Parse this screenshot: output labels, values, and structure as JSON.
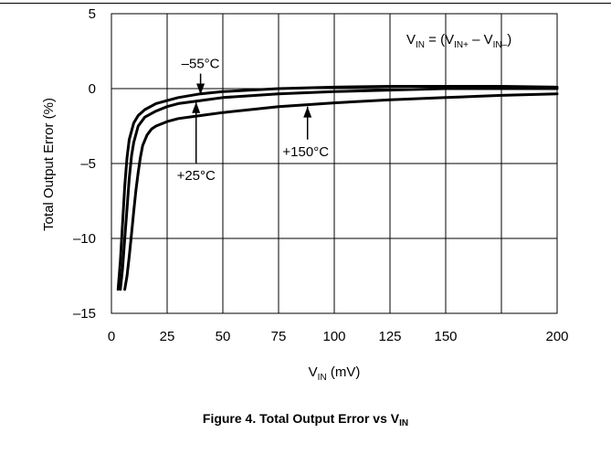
{
  "chart_data": {
    "type": "line",
    "title": "",
    "xlabel": "V",
    "xlabel_sub": "IN",
    "xlabel_unit": "(mV)",
    "ylabel": "Total Output Error (%)",
    "xlim": [
      0,
      200
    ],
    "ylim": [
      -15,
      5
    ],
    "xticks": [
      0,
      25,
      50,
      75,
      100,
      125,
      150,
      200
    ],
    "xgrid": [
      0,
      25,
      50,
      75,
      100,
      125,
      150,
      175,
      200
    ],
    "yticks": [
      5,
      0,
      -5,
      -10,
      -15
    ],
    "grid": true,
    "series": [
      {
        "name": "–55°C",
        "x": [
          3,
          4,
          5,
          6,
          7,
          8,
          10,
          12,
          15,
          20,
          25,
          30,
          40,
          50,
          75,
          100,
          125,
          150,
          175,
          200
        ],
        "y": [
          -13.4,
          -11.5,
          -9,
          -6.5,
          -4.6,
          -3.4,
          -2.3,
          -1.8,
          -1.4,
          -1.0,
          -0.8,
          -0.6,
          -0.35,
          -0.2,
          0.0,
          0.1,
          0.15,
          0.15,
          0.15,
          0.1
        ]
      },
      {
        "name": "+25°C",
        "x": [
          4,
          5,
          6,
          7,
          8,
          9,
          10,
          12,
          15,
          20,
          25,
          30,
          40,
          50,
          75,
          100,
          125,
          150,
          175,
          200
        ],
        "y": [
          -13.4,
          -12,
          -10,
          -8,
          -6,
          -4.5,
          -3.6,
          -2.5,
          -1.9,
          -1.5,
          -1.2,
          -1.0,
          -0.8,
          -0.6,
          -0.35,
          -0.2,
          -0.1,
          0.0,
          0.0,
          0.0
        ]
      },
      {
        "name": "+150°C",
        "x": [
          6,
          7,
          8,
          9,
          10,
          11,
          12,
          13,
          14,
          16,
          18,
          20,
          25,
          30,
          40,
          50,
          75,
          100,
          125,
          150,
          175,
          200
        ],
        "y": [
          -13.4,
          -12.5,
          -11.2,
          -9.7,
          -8.2,
          -6.8,
          -5.6,
          -4.6,
          -3.8,
          -3.1,
          -2.7,
          -2.5,
          -2.2,
          -2.0,
          -1.8,
          -1.6,
          -1.2,
          -0.95,
          -0.75,
          -0.6,
          -0.45,
          -0.35
        ]
      }
    ],
    "annotations": {
      "m55": {
        "text": "–55°C",
        "arrow_from": [
          40,
          1.0
        ],
        "arrow_to": [
          40,
          -0.4
        ]
      },
      "p25": {
        "text": "+25°C",
        "arrow_from": [
          38,
          -5.0
        ],
        "arrow_to": [
          38,
          -0.9
        ]
      },
      "p150": {
        "text": "+150°C",
        "arrow_from": [
          88,
          -3.4
        ],
        "arrow_to": [
          88,
          -1.2
        ]
      }
    },
    "equation": {
      "a": "V",
      "a_sub": "IN",
      "mid": " = (V",
      "b_sub": "IN+",
      "c": "  – V",
      "c_sub": "IN–",
      "end": ")"
    }
  },
  "caption": {
    "text": "Figure 4. Total Output Error vs V",
    "sub": "IN"
  }
}
